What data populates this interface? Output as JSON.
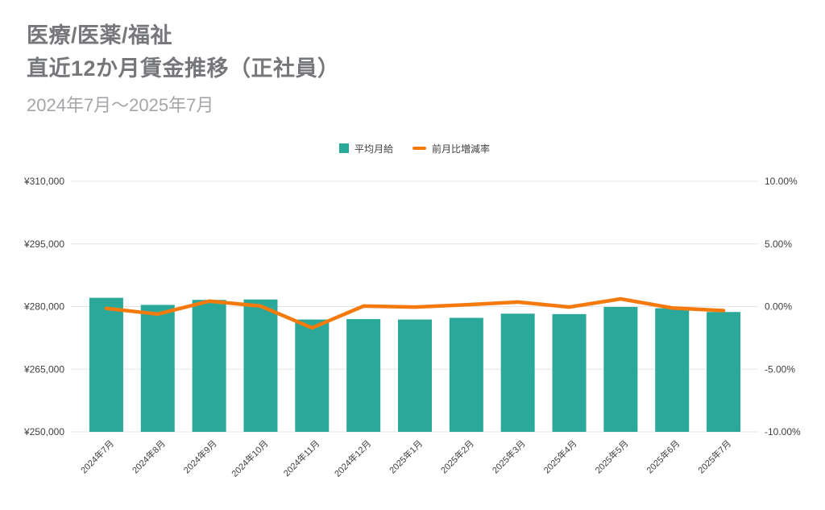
{
  "header": {
    "title_line1": "医療/医薬/福祉",
    "title_line2": "直近12か月賃金推移（正社員）",
    "subtitle": "2024年7月～2025年7月"
  },
  "legend": {
    "items": [
      {
        "label": "平均月給",
        "marker": "square",
        "color": "#2aa99b"
      },
      {
        "label": "前月比増減率",
        "marker": "dash",
        "color": "#f57a0d"
      }
    ]
  },
  "chart_data": {
    "type": "combo bar+line",
    "title": "医療/医薬/福祉 直近12か月賃金推移（正社員）",
    "subtitle": "2024年7月～2025年7月",
    "categories": [
      "2024年7月",
      "2024年8月",
      "2024年9月",
      "2024年10月",
      "2024年11月",
      "2024年12月",
      "2025年1月",
      "2025年2月",
      "2025年3月",
      "2025年4月",
      "2025年5月",
      "2025年6月",
      "2025年7月"
    ],
    "series": [
      {
        "name": "平均月給",
        "type": "bar",
        "axis": "left",
        "unit": "yen",
        "values": [
          282100,
          280400,
          281600,
          281700,
          276900,
          277000,
          276900,
          277300,
          278300,
          278200,
          279900,
          279600,
          278700
        ]
      },
      {
        "name": "前月比増減率",
        "type": "line",
        "axis": "right",
        "unit": "%",
        "values": [
          -0.15,
          -0.6,
          0.43,
          0.04,
          -1.7,
          0.04,
          -0.04,
          0.14,
          0.36,
          -0.04,
          0.61,
          -0.11,
          -0.32
        ]
      }
    ],
    "left_axis": {
      "min": 250000,
      "max": 310000,
      "tick_labels": [
        "¥250,000",
        "¥265,000",
        "¥280,000",
        "¥295,000",
        "¥310,000"
      ]
    },
    "right_axis": {
      "min": -10,
      "max": 10,
      "tick_labels": [
        "-10.00%",
        "-5.00%",
        "0.00%",
        "5.00%",
        "10.00%"
      ]
    },
    "grid": "horizontal",
    "legend_position": "top-center"
  },
  "colors": {
    "bar": "#2aa99b",
    "line": "#f57a0d",
    "grid": "#e5e5e5",
    "axis_text": "#3f4043",
    "background": "#ffffff"
  }
}
